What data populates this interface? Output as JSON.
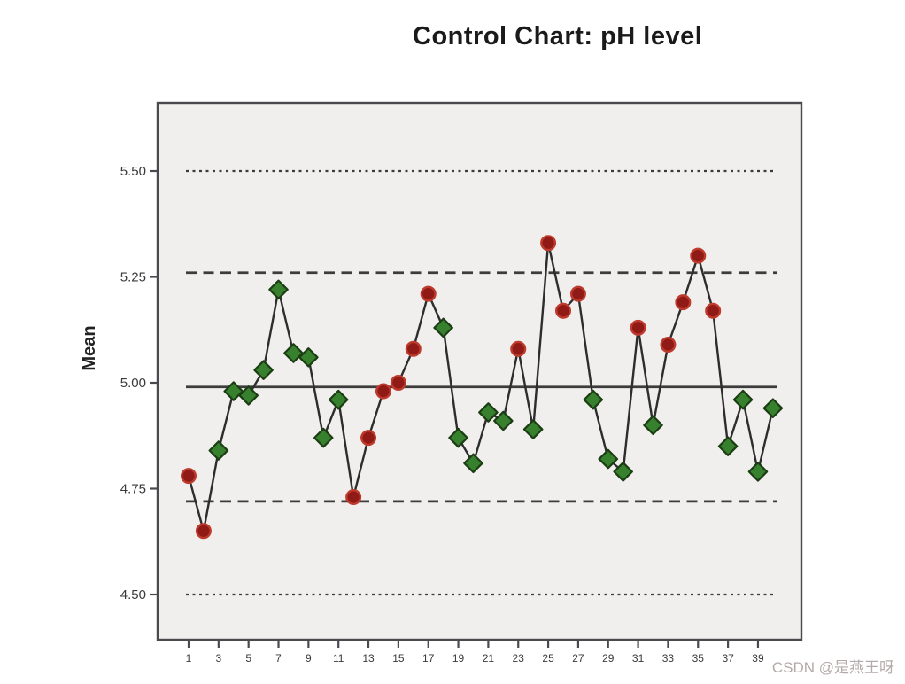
{
  "title": "Control Chart: pH level",
  "watermark": "CSDN @是燕王呀",
  "y_axis": {
    "label": "Mean",
    "tick_labels": [
      "5.50",
      "5.25",
      "5.00",
      "4.75",
      "4.50"
    ],
    "tick_values": [
      5.5,
      5.25,
      5.0,
      4.75,
      4.5
    ]
  },
  "x_axis": {
    "tick_labels": [
      "1",
      "3",
      "5",
      "7",
      "9",
      "11",
      "13",
      "15",
      "17",
      "19",
      "21",
      "23",
      "25",
      "27",
      "29",
      "31",
      "33",
      "35",
      "37",
      "39"
    ]
  },
  "colors": {
    "page_bg": "#ffffff",
    "plot_bg": "#f0efed",
    "frame": "#4a4a4e",
    "series_line": "#2d2d2d",
    "reference_line": "#3c3c3c",
    "in_control_fill": "#37802e",
    "in_control_stroke": "#1c3d14",
    "out_of_control_fill": "#8f1a16",
    "out_of_control_stroke": "#bd3a2d",
    "tick_text": "#3a3a3a",
    "title_text": "#1a1a1a",
    "watermark_text": "#b5a9a9"
  },
  "chart_data": {
    "type": "line",
    "chart_kind": "control-chart",
    "title": "Control Chart: pH level",
    "xlabel": "",
    "ylabel": "Mean",
    "grid": false,
    "legend": "none",
    "ylim": [
      4.4,
      5.66
    ],
    "xlim": [
      0,
      41
    ],
    "x": [
      1,
      2,
      3,
      4,
      5,
      6,
      7,
      8,
      9,
      10,
      11,
      12,
      13,
      14,
      15,
      16,
      17,
      18,
      19,
      20,
      21,
      22,
      23,
      24,
      25,
      26,
      27,
      28,
      29,
      30,
      31,
      32,
      33,
      34,
      35,
      36,
      37,
      38,
      39,
      40
    ],
    "series": [
      {
        "name": "pH level mean",
        "values": [
          4.78,
          4.65,
          4.84,
          4.98,
          4.97,
          5.03,
          5.22,
          5.07,
          5.06,
          4.87,
          4.96,
          4.73,
          4.87,
          4.98,
          5.0,
          5.08,
          5.21,
          5.13,
          4.87,
          4.81,
          4.93,
          4.91,
          5.08,
          4.89,
          5.33,
          5.17,
          5.21,
          4.96,
          4.82,
          4.79,
          5.13,
          4.9,
          5.09,
          5.19,
          5.3,
          5.17,
          4.85,
          4.96,
          4.79,
          4.94
        ]
      }
    ],
    "out_of_control_points": [
      1,
      2,
      12,
      13,
      14,
      15,
      16,
      17,
      23,
      25,
      26,
      27,
      31,
      33,
      34,
      35,
      36
    ],
    "marker_in_control": "green-diamond",
    "marker_out_of_control": "red-circle",
    "control_limits": {
      "ucl": 5.26,
      "center": 4.99,
      "lcl": 4.72
    },
    "sigma_lines": {
      "upper": 5.5,
      "lower": 4.5
    }
  }
}
